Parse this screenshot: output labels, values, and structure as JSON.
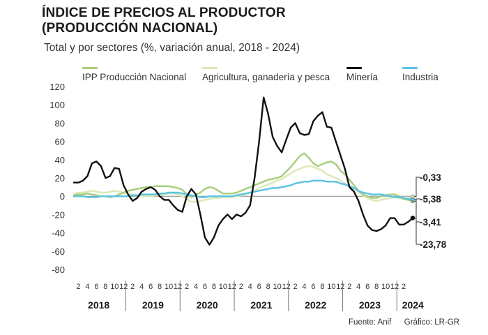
{
  "header": {
    "title_line1": "ÍNDICE DE PRECIOS AL PRODUCTOR",
    "title_line2": "(PRODUCCIÓN NACIONAL)",
    "subtitle": "Total y por sectores (%, variación anual, 2018 - 2024)"
  },
  "footer": {
    "source": "Fuente: Anif",
    "credit": "Gráfico: LR-GR"
  },
  "colors": {
    "ipp": "#a9cf7c",
    "agri": "#dce9b8",
    "mineria": "#111111",
    "industria": "#5cc4e3"
  },
  "chart_data": {
    "type": "line",
    "ylim": [
      -80,
      120
    ],
    "yticks": [
      "120",
      "100",
      "80",
      "60",
      "40",
      "20",
      "0",
      "-20",
      "-40",
      "-60",
      "-80"
    ],
    "month_ticks": [
      "2",
      "4",
      "6",
      "8",
      "10",
      "12"
    ],
    "years": [
      "2018",
      "2019",
      "2020",
      "2021",
      "2022",
      "2023",
      "2024"
    ],
    "x_range": [
      "2018-01",
      "2024-02"
    ],
    "end_labels": [
      "-0,33",
      "-5,38",
      "-3,41",
      "-23,78"
    ],
    "series": [
      {
        "name": "IPP Producción Nacional",
        "color": "#a9cf7c",
        "values": [
          1,
          2,
          2,
          3,
          2,
          1,
          0,
          0,
          -1,
          0,
          2,
          4,
          6,
          7,
          8,
          9,
          10,
          10,
          11,
          11,
          11,
          11,
          10,
          9,
          7,
          2,
          -1,
          2,
          4,
          8,
          10,
          9,
          6,
          3,
          3,
          3,
          4,
          6,
          8,
          10,
          12,
          14,
          16,
          18,
          19,
          20,
          22,
          27,
          32,
          38,
          44,
          47,
          42,
          36,
          33,
          35,
          37,
          38,
          35,
          28,
          24,
          18,
          12,
          6,
          2,
          0,
          -2,
          -2,
          0,
          1,
          2,
          2,
          0,
          -3,
          -4,
          -5.38
        ]
      },
      {
        "name": "Agricultura, ganadería y pesca",
        "color": "#dce9b8",
        "values": [
          3,
          4,
          4,
          5,
          6,
          5,
          4,
          4,
          5,
          6,
          5,
          4,
          3,
          2,
          1,
          0,
          0,
          0,
          1,
          1,
          2,
          3,
          3,
          2,
          0,
          -3,
          -6,
          -6,
          -5,
          -4,
          -3,
          -2,
          -2,
          -1,
          -1,
          -1,
          0,
          1,
          2,
          4,
          6,
          9,
          11,
          13,
          15,
          17,
          19,
          22,
          25,
          28,
          30,
          32,
          33,
          32,
          30,
          28,
          24,
          22,
          20,
          17,
          14,
          11,
          8,
          5,
          1,
          -2,
          -4,
          -5,
          -4,
          -3,
          -2,
          -1,
          -2,
          -3,
          -2,
          -0.33
        ]
      },
      {
        "name": "Minería",
        "color": "#111111",
        "values": [
          15,
          15,
          17,
          22,
          36,
          38,
          33,
          20,
          22,
          31,
          30,
          12,
          2,
          -5,
          -2,
          5,
          8,
          10,
          7,
          0,
          -4,
          -4,
          -10,
          -15,
          -17,
          0,
          8,
          2,
          -20,
          -45,
          -53,
          -45,
          -32,
          -25,
          -20,
          -25,
          -20,
          -22,
          -18,
          -10,
          20,
          60,
          108,
          90,
          65,
          55,
          48,
          62,
          75,
          80,
          69,
          67,
          68,
          82,
          88,
          92,
          76,
          75,
          60,
          45,
          30,
          10,
          5,
          -5,
          -20,
          -32,
          -37,
          -38,
          -36,
          -32,
          -24,
          -24,
          -31,
          -31,
          -28,
          -23.78
        ]
      },
      {
        "name": "Industria",
        "color": "#5cc4e3",
        "values": [
          0,
          0,
          0,
          -1,
          -1,
          -1,
          0,
          0,
          0,
          0,
          0,
          0,
          0,
          1,
          1,
          2,
          2,
          2,
          2,
          3,
          3,
          4,
          4,
          4,
          3,
          2,
          1,
          0,
          -1,
          -1,
          0,
          0,
          0,
          0,
          0,
          0,
          1,
          2,
          3,
          4,
          5,
          6,
          7,
          8,
          9,
          9,
          10,
          11,
          12,
          14,
          15,
          16,
          16,
          17,
          17,
          17,
          16,
          16,
          16,
          14,
          13,
          11,
          9,
          6,
          4,
          3,
          2,
          2,
          2,
          1,
          0,
          -1,
          -1,
          -2,
          -3,
          -3.41
        ]
      }
    ]
  }
}
